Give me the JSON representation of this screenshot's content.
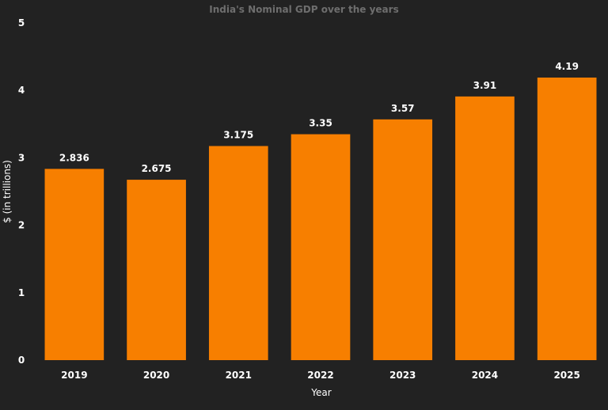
{
  "chart_data": {
    "type": "bar",
    "title": "India's Nominal GDP over the years",
    "xlabel": "Year",
    "ylabel": "$ (in trillions)",
    "categories": [
      "2019",
      "2020",
      "2021",
      "2022",
      "2023",
      "2024",
      "2025"
    ],
    "values": [
      2.836,
      2.675,
      3.175,
      3.35,
      3.57,
      3.91,
      4.19
    ],
    "value_labels": [
      "2.836",
      "2.675",
      "3.175",
      "3.35",
      "3.57",
      "3.91",
      "4.19"
    ],
    "ylim": [
      0,
      5
    ],
    "yticks": [
      "0",
      "1",
      "2",
      "3",
      "4",
      "5"
    ],
    "grid": false,
    "legend": "none",
    "colors": {
      "background": "#222222",
      "bar": "#f77f00",
      "title": "#6e6e6e",
      "text": "#ffffff"
    }
  }
}
